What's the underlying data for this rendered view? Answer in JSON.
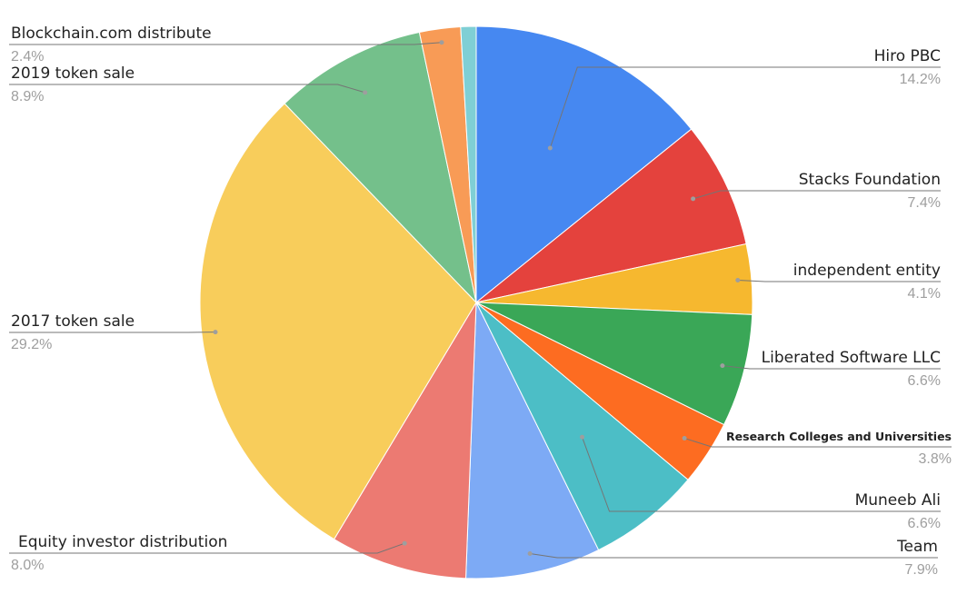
{
  "chart_data": {
    "type": "pie",
    "title": "",
    "start_angle_deg": 0,
    "direction": "clockwise",
    "slices": [
      {
        "label": "Hiro PBC",
        "value": 14.2,
        "pct_label": "14.2%",
        "color": "#4688f1"
      },
      {
        "label": "Stacks Foundation",
        "value": 7.4,
        "pct_label": "7.4%",
        "color": "#e4423d"
      },
      {
        "label": "independent entity",
        "value": 4.1,
        "pct_label": "4.1%",
        "color": "#f6b82f"
      },
      {
        "label": "Liberated Software LLC",
        "value": 6.6,
        "pct_label": "6.6%",
        "color": "#3aa757"
      },
      {
        "label": "Research Colleges and Universities",
        "value": 3.8,
        "pct_label": "3.8%",
        "color": "#fd6c21"
      },
      {
        "label": "Muneeb Ali",
        "value": 6.6,
        "pct_label": "6.6%",
        "color": "#4cbec6"
      },
      {
        "label": "Team",
        "value": 7.9,
        "pct_label": "7.9%",
        "color": "#7daaf5"
      },
      {
        "label": "Equity investor distribution",
        "value": 8.0,
        "pct_label": "8.0%",
        "color": "#ec7a72"
      },
      {
        "label": "2017 token sale",
        "value": 29.2,
        "pct_label": "29.2%",
        "color": "#f8cd5b"
      },
      {
        "label": "2019   token sale",
        "value": 8.9,
        "pct_label": "8.9%",
        "color": "#74c08b"
      },
      {
        "label": "Blockchain.com   distribute",
        "value": 2.4,
        "pct_label": "2.4%",
        "color": "#f89b56"
      },
      {
        "label": "",
        "value": 0.9,
        "pct_label": "",
        "color": "#7fcfd5"
      }
    ]
  }
}
